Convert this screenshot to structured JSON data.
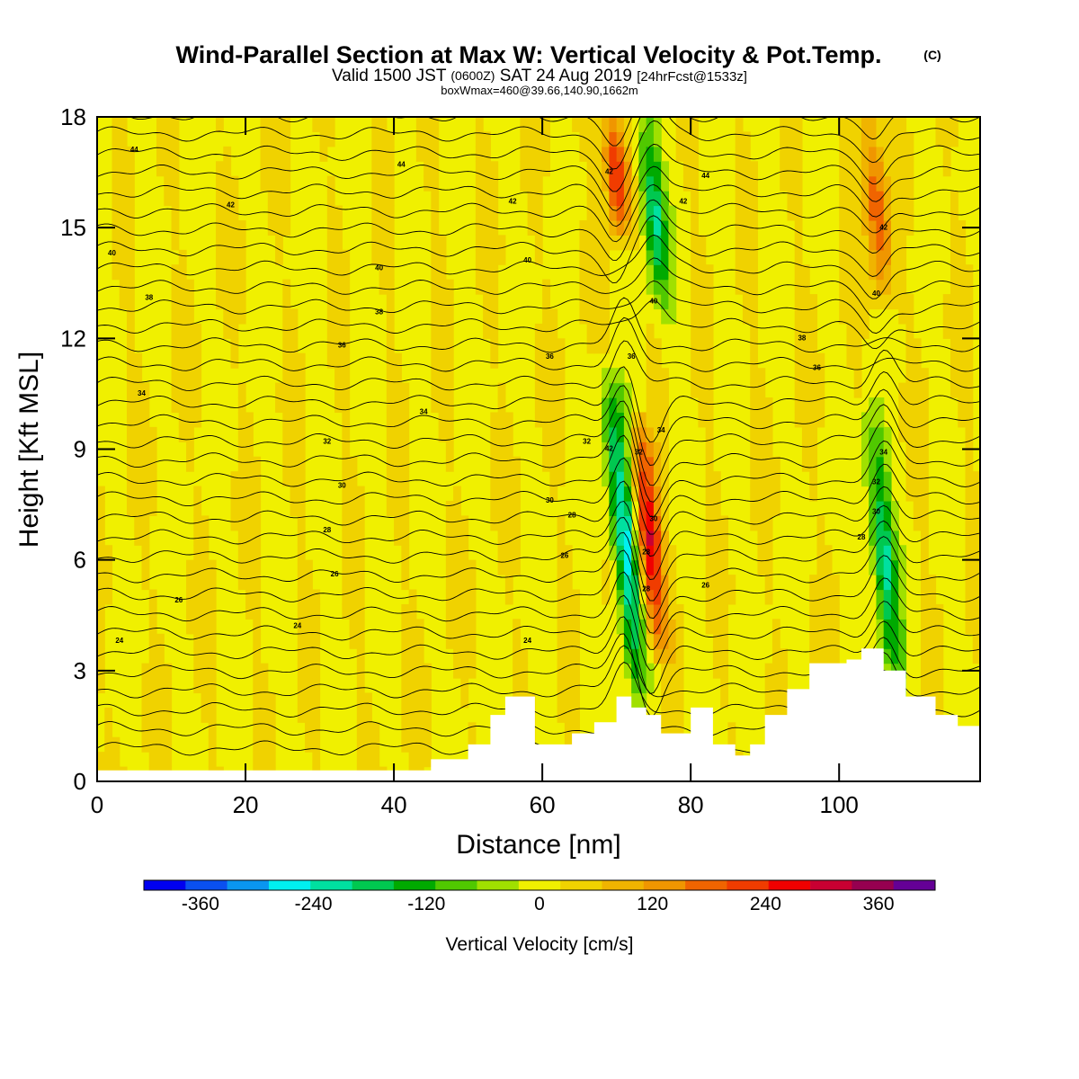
{
  "chart_data": {
    "type": "heatmap",
    "title": "Wind-Parallel Section at Max W: Vertical Velocity & Pot.Temp.",
    "title_mark": "(C)",
    "subtitle_line1": {
      "a": "Valid 1500 JST",
      "b": "(0600Z)",
      "c": "SAT 24 Aug 2019",
      "d": "[24hrFcst@1533z]"
    },
    "subtitle_line2": "boxWmax=460@39.66,140.90,1662m",
    "xlabel": "Distance [nm]",
    "ylabel": "Height [Kft MSL]",
    "xlim": [
      0,
      119
    ],
    "ylim": [
      0,
      18
    ],
    "x_ticks": [
      "0",
      "20",
      "40",
      "60",
      "80",
      "100"
    ],
    "y_ticks": [
      "0",
      "3",
      "6",
      "9",
      "12",
      "15",
      "18"
    ],
    "colorbar": {
      "label": "Vertical Velocity [cm/s]",
      "ticks": [
        "-360",
        "-240",
        "-120",
        "0",
        "120",
        "240",
        "360"
      ],
      "range": [
        -420,
        420
      ],
      "colors": [
        "#0000f0",
        "#0a50f0",
        "#0a96f0",
        "#00f0f0",
        "#00e0a0",
        "#00c850",
        "#00aa00",
        "#50c800",
        "#a0e000",
        "#f0f000",
        "#f0d200",
        "#f0b400",
        "#f09600",
        "#f06400",
        "#f03c00",
        "#f00000",
        "#c80032",
        "#960050",
        "#640096"
      ]
    },
    "features": [
      {
        "type": "updraft",
        "x": 74.5,
        "z_base": 3.5,
        "z_top": 9.5,
        "w": 300
      },
      {
        "type": "downdraft",
        "x": 71,
        "z_base": 2.5,
        "z_top": 11,
        "w": -300
      },
      {
        "type": "downdraft",
        "x": 106,
        "z_base": 2.5,
        "z_top": 10,
        "w": -240
      },
      {
        "type": "updraft",
        "x": 70,
        "z_base": 15,
        "z_top": 18,
        "w": 260
      },
      {
        "type": "downdraft",
        "x": 75,
        "z_base": 13,
        "z_top": 18,
        "w": -240
      },
      {
        "type": "updraft",
        "x": 105,
        "z_base": 13,
        "z_top": 18,
        "w": 200
      }
    ],
    "terrain": [
      {
        "x": 0,
        "z": 0.3
      },
      {
        "x": 42,
        "z": 0.3
      },
      {
        "x": 45,
        "z": 0.6
      },
      {
        "x": 50,
        "z": 1.0
      },
      {
        "x": 53,
        "z": 1.8
      },
      {
        "x": 55,
        "z": 2.3
      },
      {
        "x": 57,
        "z": 2.3
      },
      {
        "x": 59,
        "z": 1.0
      },
      {
        "x": 61,
        "z": 1.0
      },
      {
        "x": 64,
        "z": 1.3
      },
      {
        "x": 67,
        "z": 1.6
      },
      {
        "x": 70,
        "z": 2.3
      },
      {
        "x": 72,
        "z": 2.0
      },
      {
        "x": 74,
        "z": 1.8
      },
      {
        "x": 76,
        "z": 1.3
      },
      {
        "x": 78,
        "z": 1.3
      },
      {
        "x": 80,
        "z": 2.0
      },
      {
        "x": 83,
        "z": 1.0
      },
      {
        "x": 86,
        "z": 0.7
      },
      {
        "x": 88,
        "z": 1.0
      },
      {
        "x": 90,
        "z": 1.8
      },
      {
        "x": 93,
        "z": 2.5
      },
      {
        "x": 96,
        "z": 3.2
      },
      {
        "x": 101,
        "z": 3.3
      },
      {
        "x": 103,
        "z": 3.6
      },
      {
        "x": 106,
        "z": 3.0
      },
      {
        "x": 109,
        "z": 2.3
      },
      {
        "x": 111,
        "z": 2.3
      },
      {
        "x": 113,
        "z": 1.8
      },
      {
        "x": 116,
        "z": 1.5
      },
      {
        "x": 119,
        "z": 1.3
      }
    ],
    "theta_contour_labels": [
      {
        "x": 5,
        "z": 17.1,
        "text": "44"
      },
      {
        "x": 41,
        "z": 16.7,
        "text": "44"
      },
      {
        "x": 18,
        "z": 15.6,
        "text": "42"
      },
      {
        "x": 56,
        "z": 15.7,
        "text": "42"
      },
      {
        "x": 2,
        "z": 14.3,
        "text": "40"
      },
      {
        "x": 38,
        "z": 13.9,
        "text": "40"
      },
      {
        "x": 7,
        "z": 13.1,
        "text": "38"
      },
      {
        "x": 38,
        "z": 12.7,
        "text": "38"
      },
      {
        "x": 33,
        "z": 11.8,
        "text": "36"
      },
      {
        "x": 6,
        "z": 10.5,
        "text": "34"
      },
      {
        "x": 44,
        "z": 10.0,
        "text": "34"
      },
      {
        "x": 31,
        "z": 9.2,
        "text": "32"
      },
      {
        "x": 61,
        "z": 11.5,
        "text": "36"
      },
      {
        "x": 58,
        "z": 14.1,
        "text": "40"
      },
      {
        "x": 69,
        "z": 16.5,
        "text": "42"
      },
      {
        "x": 82,
        "z": 16.4,
        "text": "44"
      },
      {
        "x": 79,
        "z": 15.7,
        "text": "42"
      },
      {
        "x": 75,
        "z": 13.0,
        "text": "40"
      },
      {
        "x": 72,
        "z": 11.5,
        "text": "36"
      },
      {
        "x": 76,
        "z": 9.5,
        "text": "34"
      },
      {
        "x": 66,
        "z": 9.2,
        "text": "32"
      },
      {
        "x": 61,
        "z": 7.6,
        "text": "30"
      },
      {
        "x": 64,
        "z": 7.2,
        "text": "28"
      },
      {
        "x": 63,
        "z": 6.1,
        "text": "26"
      },
      {
        "x": 33,
        "z": 8.0,
        "text": "30"
      },
      {
        "x": 31,
        "z": 6.8,
        "text": "28"
      },
      {
        "x": 32,
        "z": 5.6,
        "text": "26"
      },
      {
        "x": 11,
        "z": 4.9,
        "text": "26"
      },
      {
        "x": 27,
        "z": 4.2,
        "text": "24"
      },
      {
        "x": 3,
        "z": 3.8,
        "text": "24"
      },
      {
        "x": 58,
        "z": 3.8,
        "text": "24"
      },
      {
        "x": 82,
        "z": 5.3,
        "text": "26"
      },
      {
        "x": 95,
        "z": 12.0,
        "text": "38"
      },
      {
        "x": 97,
        "z": 11.2,
        "text": "36"
      },
      {
        "x": 106,
        "z": 15.0,
        "text": "42"
      },
      {
        "x": 105,
        "z": 13.2,
        "text": "40"
      },
      {
        "x": 106,
        "z": 8.9,
        "text": "34"
      },
      {
        "x": 105,
        "z": 8.1,
        "text": "32"
      },
      {
        "x": 105,
        "z": 7.3,
        "text": "30"
      },
      {
        "x": 103,
        "z": 6.6,
        "text": "28"
      },
      {
        "x": 69,
        "z": 9.0,
        "text": "42"
      },
      {
        "x": 73,
        "z": 8.9,
        "text": "32"
      },
      {
        "x": 75,
        "z": 7.1,
        "text": "30"
      },
      {
        "x": 74,
        "z": 6.2,
        "text": "28"
      },
      {
        "x": 74,
        "z": 5.2,
        "text": "28"
      }
    ]
  }
}
